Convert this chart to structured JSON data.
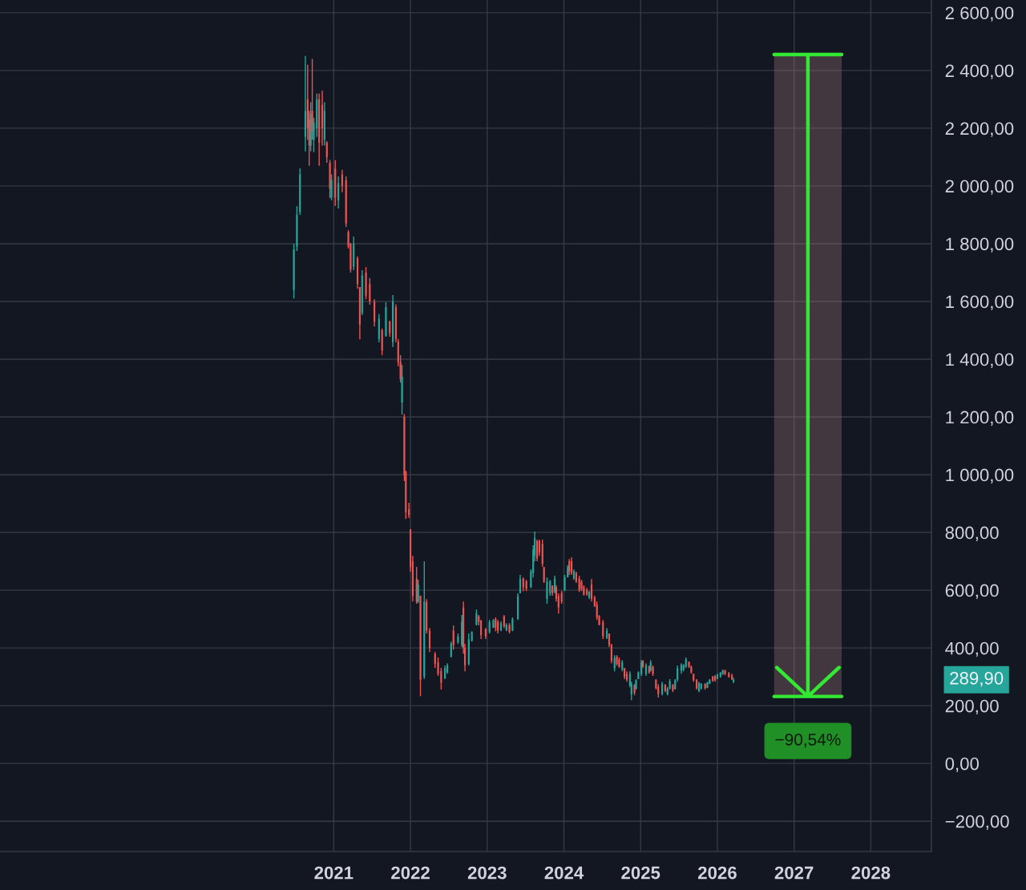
{
  "chart_data": {
    "type": "candlestick",
    "x": [
      2020.48,
      2020.52,
      2020.56,
      2020.63,
      2020.66,
      2020.68,
      2020.7,
      2020.72,
      2020.74,
      2020.78,
      2020.81,
      2020.85,
      2020.88,
      2020.91,
      2020.95,
      2020.97,
      2021.02,
      2021.06,
      2021.11,
      2021.16,
      2021.19,
      2021.22,
      2021.26,
      2021.31,
      2021.34,
      2021.37,
      2021.42,
      2021.47,
      2021.53,
      2021.59,
      2021.63,
      2021.68,
      2021.73,
      2021.77,
      2021.81,
      2021.84,
      2021.87,
      2021.89,
      2021.92,
      2021.94,
      2021.98,
      2022.0,
      2022.03,
      2022.08,
      2022.1,
      2022.13,
      2022.18,
      2022.21,
      2022.25,
      2022.32,
      2022.36,
      2022.4,
      2022.45,
      2022.48,
      2022.53,
      2022.56,
      2022.62,
      2022.67,
      2022.69,
      2022.71,
      2022.76,
      2022.8,
      2022.86,
      2022.89,
      2022.92,
      2022.98,
      2023.03,
      2023.08,
      2023.11,
      2023.14,
      2023.18,
      2023.22,
      2023.25,
      2023.29,
      2023.33,
      2023.4,
      2023.43,
      2023.47,
      2023.51,
      2023.57,
      2023.6,
      2023.62,
      2023.65,
      2023.68,
      2023.72,
      2023.74,
      2023.78,
      2023.82,
      2023.85,
      2023.88,
      2023.9,
      2023.93,
      2023.97,
      2024.01,
      2024.05,
      2024.07,
      2024.1,
      2024.13,
      2024.16,
      2024.2,
      2024.23,
      2024.26,
      2024.3,
      2024.33,
      2024.36,
      2024.4,
      2024.43,
      2024.46,
      2024.51,
      2024.56,
      2024.59,
      2024.62,
      2024.66,
      2024.69,
      2024.72,
      2024.76,
      2024.79,
      2024.82,
      2024.86,
      2024.88,
      2024.92,
      2024.94,
      2024.97,
      2025.01,
      2025.03,
      2025.07,
      2025.11,
      2025.13,
      2025.16,
      2025.2,
      2025.23,
      2025.28,
      2025.32,
      2025.35,
      2025.38,
      2025.42,
      2025.45,
      2025.48,
      2025.53,
      2025.56,
      2025.59,
      2025.63,
      2025.66,
      2025.69,
      2025.73,
      2025.76,
      2025.79,
      2025.84,
      2025.87,
      2025.9,
      2025.94,
      2025.97,
      2026.0,
      2026.04,
      2026.07,
      2026.1,
      2026.15,
      2026.19,
      2026.21
    ],
    "ohlc": [
      [
        1640,
        1800,
        1610,
        1780
      ],
      [
        1790,
        1930,
        1775,
        1900
      ],
      [
        1910,
        2061,
        1900,
        2040
      ],
      [
        2170,
        2450,
        2120,
        2260
      ],
      [
        2300,
        2420,
        2160,
        2200
      ],
      [
        2230,
        2260,
        2070,
        2140
      ],
      [
        2140,
        2290,
        2120,
        2250
      ],
      [
        2260,
        2440,
        2160,
        2190
      ],
      [
        2160,
        2236,
        2117,
        2220
      ],
      [
        2200,
        2320,
        2170,
        2300
      ],
      [
        2300,
        2320,
        2070,
        2150
      ],
      [
        2280,
        2330,
        2140,
        2200
      ],
      [
        2160,
        2290,
        2140,
        2260
      ],
      [
        2150,
        2155,
        2080,
        2100
      ],
      [
        2080,
        2090,
        1958,
        1990
      ],
      [
        1960,
        2040,
        1950,
        2020
      ],
      [
        2060,
        2089,
        1931,
        1960
      ],
      [
        1950,
        2033,
        1922,
        2010
      ],
      [
        2040,
        2056,
        1978,
        2000
      ],
      [
        2020,
        2033,
        1858,
        1870
      ],
      [
        1840,
        1847,
        1783,
        1790
      ],
      [
        1800,
        1803,
        1700,
        1710
      ],
      [
        1720,
        1825,
        1708,
        1800
      ],
      [
        1750,
        1756,
        1644,
        1660
      ],
      [
        1650,
        1650,
        1469,
        1520
      ],
      [
        1560,
        1708,
        1553,
        1690
      ],
      [
        1700,
        1719,
        1608,
        1620
      ],
      [
        1660,
        1681,
        1589,
        1600
      ],
      [
        1600,
        1608,
        1514,
        1530
      ],
      [
        1470,
        1556,
        1458,
        1540
      ],
      [
        1500,
        1506,
        1414,
        1430
      ],
      [
        1480,
        1597,
        1478,
        1580
      ],
      [
        1530,
        1533,
        1478,
        1490
      ],
      [
        1460,
        1622,
        1442,
        1600
      ],
      [
        1580,
        1590,
        1458,
        1470
      ],
      [
        1460,
        1470,
        1375,
        1390
      ],
      [
        1390,
        1414,
        1319,
        1330
      ],
      [
        1250,
        1380,
        1208,
        1340
      ],
      [
        1200,
        1210,
        978,
        1000
      ],
      [
        1010,
        1014,
        847,
        870
      ],
      [
        880,
        903,
        850,
        860
      ],
      [
        811,
        811,
        664,
        680
      ],
      [
        700,
        719,
        561,
        580
      ],
      [
        640,
        681,
        553,
        560
      ],
      [
        560,
        636,
        556,
        620
      ],
      [
        581,
        581,
        233,
        290
      ],
      [
        300,
        700,
        292,
        560
      ],
      [
        560,
        569,
        450,
        460
      ],
      [
        460,
        469,
        386,
        400
      ],
      [
        380,
        386,
        331,
        345
      ],
      [
        350,
        367,
        303,
        310
      ],
      [
        320,
        331,
        256,
        280
      ],
      [
        295,
        339,
        292,
        330
      ],
      [
        315,
        347,
        311,
        340
      ],
      [
        370,
        422,
        367,
        415
      ],
      [
        460,
        478,
        394,
        410
      ],
      [
        420,
        450,
        414,
        440
      ],
      [
        410,
        514,
        403,
        490
      ],
      [
        540,
        561,
        380,
        400
      ],
      [
        400,
        414,
        319,
        340
      ],
      [
        345,
        450,
        339,
        430
      ],
      [
        425,
        458,
        422,
        455
      ],
      [
        480,
        533,
        478,
        520
      ],
      [
        510,
        514,
        478,
        490
      ],
      [
        495,
        497,
        431,
        445
      ],
      [
        465,
        469,
        431,
        440
      ],
      [
        455,
        497,
        450,
        490
      ],
      [
        470,
        500,
        469,
        495
      ],
      [
        500,
        506,
        458,
        470
      ],
      [
        490,
        497,
        450,
        460
      ],
      [
        462,
        492,
        458,
        485
      ],
      [
        510,
        514,
        469,
        475
      ],
      [
        462,
        486,
        458,
        480
      ],
      [
        480,
        486,
        450,
        455
      ],
      [
        460,
        506,
        458,
        500
      ],
      [
        500,
        589,
        497,
        580
      ],
      [
        590,
        653,
        589,
        640
      ],
      [
        640,
        644,
        597,
        610
      ],
      [
        630,
        636,
        597,
        605
      ],
      [
        610,
        672,
        608,
        665
      ],
      [
        660,
        756,
        644,
        740
      ],
      [
        720,
        803,
        700,
        780
      ],
      [
        770,
        775,
        700,
        710
      ],
      [
        770,
        775,
        719,
        730
      ],
      [
        760,
        775,
        681,
        690
      ],
      [
        680,
        681,
        625,
        630
      ],
      [
        570,
        644,
        553,
        630
      ],
      [
        590,
        636,
        581,
        630
      ],
      [
        615,
        617,
        581,
        590
      ],
      [
        595,
        650,
        589,
        640
      ],
      [
        610,
        617,
        561,
        570
      ],
      [
        580,
        589,
        519,
        540
      ],
      [
        590,
        597,
        553,
        560
      ],
      [
        600,
        653,
        597,
        645
      ],
      [
        645,
        686,
        644,
        680
      ],
      [
        700,
        708,
        653,
        665
      ],
      [
        700,
        714,
        653,
        660
      ],
      [
        640,
        672,
        636,
        665
      ],
      [
        660,
        664,
        625,
        630
      ],
      [
        640,
        650,
        594,
        600
      ],
      [
        630,
        636,
        597,
        605
      ],
      [
        610,
        617,
        581,
        585
      ],
      [
        600,
        608,
        581,
        585
      ],
      [
        575,
        597,
        569,
        595
      ],
      [
        620,
        639,
        561,
        570
      ],
      [
        575,
        581,
        542,
        545
      ],
      [
        550,
        561,
        497,
        505
      ],
      [
        510,
        514,
        478,
        480
      ],
      [
        490,
        497,
        431,
        440
      ],
      [
        435,
        469,
        431,
        460
      ],
      [
        450,
        450,
        403,
        410
      ],
      [
        410,
        414,
        347,
        355
      ],
      [
        330,
        375,
        319,
        365
      ],
      [
        370,
        375,
        339,
        345
      ],
      [
        360,
        367,
        331,
        335
      ],
      [
        325,
        358,
        319,
        350
      ],
      [
        330,
        331,
        292,
        300
      ],
      [
        310,
        319,
        283,
        290
      ],
      [
        270,
        319,
        264,
        310
      ],
      [
        240,
        283,
        219,
        275
      ],
      [
        270,
        275,
        236,
        245
      ],
      [
        258,
        292,
        256,
        288
      ],
      [
        292,
        319,
        292,
        315
      ],
      [
        310,
        358,
        303,
        350
      ],
      [
        355,
        358,
        331,
        335
      ],
      [
        310,
        347,
        303,
        340
      ],
      [
        335,
        339,
        311,
        315
      ],
      [
        320,
        358,
        319,
        350
      ],
      [
        335,
        339,
        303,
        310
      ],
      [
        290,
        292,
        256,
        262
      ],
      [
        265,
        275,
        228,
        240
      ],
      [
        240,
        283,
        236,
        275
      ],
      [
        272,
        275,
        247,
        252
      ],
      [
        240,
        264,
        236,
        260
      ],
      [
        260,
        292,
        256,
        285
      ],
      [
        272,
        275,
        247,
        252
      ],
      [
        258,
        292,
        256,
        288
      ],
      [
        290,
        339,
        283,
        330
      ],
      [
        320,
        347,
        311,
        342
      ],
      [
        325,
        344,
        319,
        340
      ],
      [
        335,
        367,
        331,
        360
      ],
      [
        352,
        353,
        331,
        335
      ],
      [
        335,
        339,
        311,
        315
      ],
      [
        310,
        311,
        283,
        288
      ],
      [
        290,
        292,
        256,
        260
      ],
      [
        250,
        283,
        247,
        278
      ],
      [
        260,
        278,
        256,
        275
      ],
      [
        275,
        278,
        256,
        260
      ],
      [
        262,
        283,
        261,
        280
      ],
      [
        276,
        292,
        275,
        290
      ],
      [
        300,
        303,
        283,
        286
      ],
      [
        303,
        306,
        283,
        288
      ],
      [
        292,
        311,
        292,
        308
      ],
      [
        300,
        317,
        297,
        314
      ],
      [
        310,
        325,
        306,
        322
      ],
      [
        322,
        325,
        306,
        310
      ],
      [
        312,
        317,
        297,
        300
      ],
      [
        305,
        311,
        289,
        292
      ],
      [
        282,
        297,
        278,
        289.9
      ]
    ],
    "colors": [
      "#26a69a",
      "#26a69a",
      "#26a69a",
      "#26a69a",
      "#ef5350",
      "#ef5350",
      "#26a69a",
      "#ef5350",
      "#26a69a",
      "#26a69a",
      "#ef5350",
      "#ef5350",
      "#26a69a",
      "#ef5350",
      "#ef5350",
      "#26a69a",
      "#ef5350",
      "#26a69a",
      "#ef5350",
      "#ef5350",
      "#ef5350",
      "#ef5350",
      "#26a69a",
      "#ef5350",
      "#ef5350",
      "#26a69a",
      "#ef5350",
      "#ef5350",
      "#ef5350",
      "#26a69a",
      "#ef5350",
      "#26a69a",
      "#ef5350",
      "#26a69a",
      "#ef5350",
      "#ef5350",
      "#ef5350",
      "#26a69a",
      "#ef5350",
      "#ef5350",
      "#ef5350",
      "#ef5350",
      "#ef5350",
      "#ef5350",
      "#26a69a",
      "#ef5350",
      "#26a69a",
      "#ef5350",
      "#ef5350",
      "#ef5350",
      "#ef5350",
      "#ef5350",
      "#26a69a",
      "#26a69a",
      "#26a69a",
      "#ef5350",
      "#26a69a",
      "#26a69a",
      "#ef5350",
      "#ef5350",
      "#26a69a",
      "#26a69a",
      "#26a69a",
      "#ef5350",
      "#ef5350",
      "#ef5350",
      "#26a69a",
      "#26a69a",
      "#ef5350",
      "#ef5350",
      "#26a69a",
      "#ef5350",
      "#26a69a",
      "#ef5350",
      "#26a69a",
      "#26a69a",
      "#26a69a",
      "#ef5350",
      "#ef5350",
      "#26a69a",
      "#26a69a",
      "#26a69a",
      "#ef5350",
      "#ef5350",
      "#ef5350",
      "#ef5350",
      "#26a69a",
      "#26a69a",
      "#ef5350",
      "#26a69a",
      "#ef5350",
      "#ef5350",
      "#ef5350",
      "#26a69a",
      "#26a69a",
      "#ef5350",
      "#ef5350",
      "#26a69a",
      "#ef5350",
      "#ef5350",
      "#ef5350",
      "#ef5350",
      "#ef5350",
      "#26a69a",
      "#ef5350",
      "#ef5350",
      "#ef5350",
      "#ef5350",
      "#ef5350",
      "#26a69a",
      "#ef5350",
      "#ef5350",
      "#26a69a",
      "#ef5350",
      "#ef5350",
      "#26a69a",
      "#ef5350",
      "#ef5350",
      "#26a69a",
      "#26a69a",
      "#ef5350",
      "#26a69a",
      "#26a69a",
      "#26a69a",
      "#ef5350",
      "#26a69a",
      "#ef5350",
      "#26a69a",
      "#ef5350",
      "#ef5350",
      "#ef5350",
      "#26a69a",
      "#ef5350",
      "#26a69a",
      "#26a69a",
      "#ef5350",
      "#26a69a",
      "#26a69a",
      "#26a69a",
      "#26a69a",
      "#26a69a",
      "#ef5350",
      "#ef5350",
      "#ef5350",
      "#ef5350",
      "#26a69a",
      "#26a69a",
      "#ef5350",
      "#26a69a",
      "#26a69a",
      "#ef5350",
      "#ef5350",
      "#26a69a",
      "#26a69a",
      "#26a69a",
      "#ef5350",
      "#ef5350",
      "#ef5350",
      "#26a69a"
    ],
    "series": [
      {
        "type": "line",
        "x": [
          2027.18,
          2027.18
        ],
        "values": [
          2455,
          232
        ],
        "color": "#33e833"
      }
    ],
    "annotations": [
      {
        "text": "−90,54%",
        "x": 2027.18,
        "y": 232
      },
      "289,90"
    ],
    "xlim": [
      2016.65,
      2028.79
    ],
    "xticks": [
      2021,
      2022,
      2023,
      2024,
      2025,
      2026,
      2027,
      2028
    ],
    "ylim": [
      -305,
      2644
    ],
    "yticks": [
      {
        "value": -200,
        "label": "−200,00"
      },
      {
        "value": 0,
        "label": "0,00"
      },
      {
        "value": 200,
        "label": "200,00"
      },
      {
        "value": 400,
        "label": "400,00"
      },
      {
        "value": 600,
        "label": "600,00"
      },
      {
        "value": 800,
        "label": "800,00"
      },
      {
        "value": 1000,
        "label": "1 000,00"
      },
      {
        "value": 1200,
        "label": "1 200,00"
      },
      {
        "value": 1400,
        "label": "1 400,00"
      },
      {
        "value": 1600,
        "label": "1 600,00"
      },
      {
        "value": 1800,
        "label": "1 800,00"
      },
      {
        "value": 2000,
        "label": "2 000,00"
      },
      {
        "value": 2200,
        "label": "2 200,00"
      },
      {
        "value": 2400,
        "label": "2 400,00"
      },
      {
        "value": 2600,
        "label": "2 600,00"
      }
    ],
    "grid": true
  }
}
